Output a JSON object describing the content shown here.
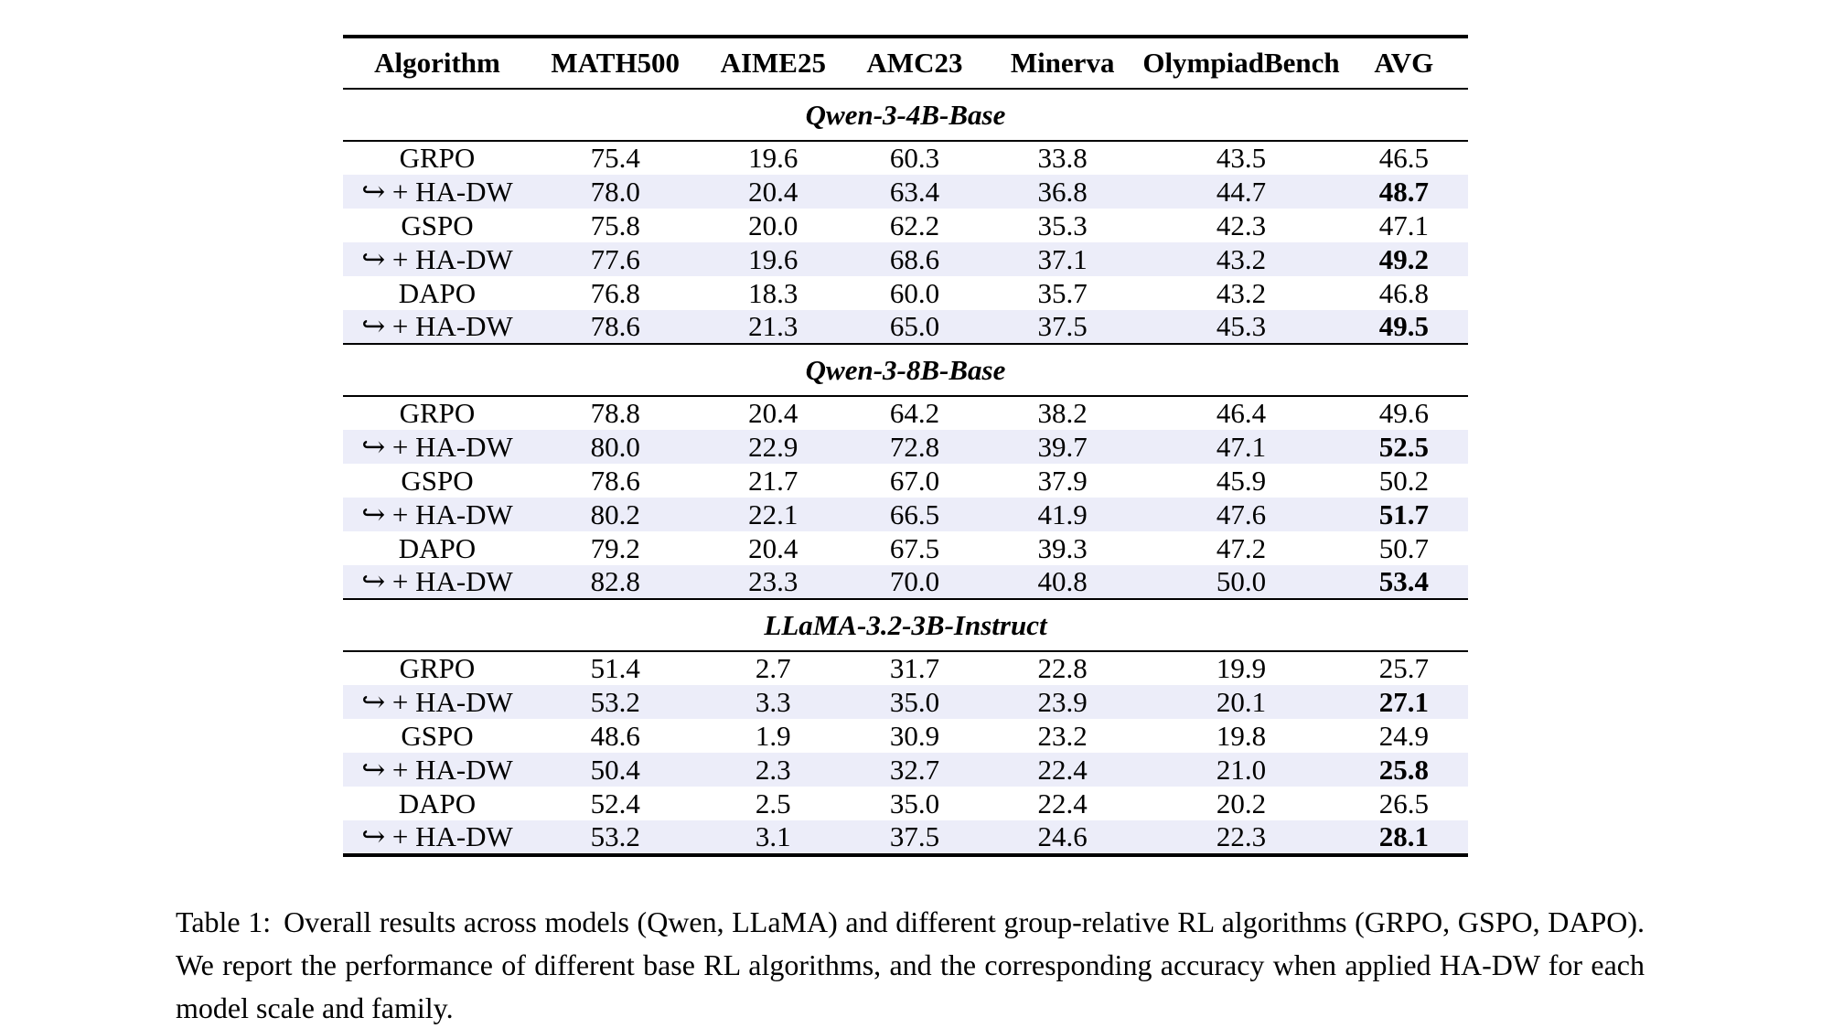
{
  "colors": {
    "highlight_row": "#ecedf9",
    "text": "#000000",
    "rule": "#000000"
  },
  "table": {
    "columns": [
      "Algorithm",
      "MATH500",
      "AIME25",
      "AMC23",
      "Minerva",
      "OlympiadBench",
      "AVG"
    ],
    "sections": [
      {
        "title": "Qwen-3-4B-Base",
        "rows": [
          {
            "algorithm": "GRPO",
            "values": [
              "75.4",
              "19.6",
              "60.3",
              "33.8",
              "43.5",
              "46.5"
            ],
            "highlight": false,
            "bold_avg": false
          },
          {
            "algorithm": "↪ + HA-DW",
            "values": [
              "78.0",
              "20.4",
              "63.4",
              "36.8",
              "44.7",
              "48.7"
            ],
            "highlight": true,
            "bold_avg": true
          },
          {
            "algorithm": "GSPO",
            "values": [
              "75.8",
              "20.0",
              "62.2",
              "35.3",
              "42.3",
              "47.1"
            ],
            "highlight": false,
            "bold_avg": false
          },
          {
            "algorithm": "↪ + HA-DW",
            "values": [
              "77.6",
              "19.6",
              "68.6",
              "37.1",
              "43.2",
              "49.2"
            ],
            "highlight": true,
            "bold_avg": true
          },
          {
            "algorithm": "DAPO",
            "values": [
              "76.8",
              "18.3",
              "60.0",
              "35.7",
              "43.2",
              "46.8"
            ],
            "highlight": false,
            "bold_avg": false
          },
          {
            "algorithm": "↪ + HA-DW",
            "values": [
              "78.6",
              "21.3",
              "65.0",
              "37.5",
              "45.3",
              "49.5"
            ],
            "highlight": true,
            "bold_avg": true
          }
        ]
      },
      {
        "title": "Qwen-3-8B-Base",
        "rows": [
          {
            "algorithm": "GRPO",
            "values": [
              "78.8",
              "20.4",
              "64.2",
              "38.2",
              "46.4",
              "49.6"
            ],
            "highlight": false,
            "bold_avg": false
          },
          {
            "algorithm": "↪ + HA-DW",
            "values": [
              "80.0",
              "22.9",
              "72.8",
              "39.7",
              "47.1",
              "52.5"
            ],
            "highlight": true,
            "bold_avg": true
          },
          {
            "algorithm": "GSPO",
            "values": [
              "78.6",
              "21.7",
              "67.0",
              "37.9",
              "45.9",
              "50.2"
            ],
            "highlight": false,
            "bold_avg": false
          },
          {
            "algorithm": "↪ + HA-DW",
            "values": [
              "80.2",
              "22.1",
              "66.5",
              "41.9",
              "47.6",
              "51.7"
            ],
            "highlight": true,
            "bold_avg": true
          },
          {
            "algorithm": "DAPO",
            "values": [
              "79.2",
              "20.4",
              "67.5",
              "39.3",
              "47.2",
              "50.7"
            ],
            "highlight": false,
            "bold_avg": false
          },
          {
            "algorithm": "↪ + HA-DW",
            "values": [
              "82.8",
              "23.3",
              "70.0",
              "40.8",
              "50.0",
              "53.4"
            ],
            "highlight": true,
            "bold_avg": true
          }
        ]
      },
      {
        "title": "LLaMA-3.2-3B-Instruct",
        "rows": [
          {
            "algorithm": "GRPO",
            "values": [
              "51.4",
              "2.7",
              "31.7",
              "22.8",
              "19.9",
              "25.7"
            ],
            "highlight": false,
            "bold_avg": false
          },
          {
            "algorithm": "↪ + HA-DW",
            "values": [
              "53.2",
              "3.3",
              "35.0",
              "23.9",
              "20.1",
              "27.1"
            ],
            "highlight": true,
            "bold_avg": true
          },
          {
            "algorithm": "GSPO",
            "values": [
              "48.6",
              "1.9",
              "30.9",
              "23.2",
              "19.8",
              "24.9"
            ],
            "highlight": false,
            "bold_avg": false
          },
          {
            "algorithm": "↪ + HA-DW",
            "values": [
              "50.4",
              "2.3",
              "32.7",
              "22.4",
              "21.0",
              "25.8"
            ],
            "highlight": true,
            "bold_avg": true
          },
          {
            "algorithm": "DAPO",
            "values": [
              "52.4",
              "2.5",
              "35.0",
              "22.4",
              "20.2",
              "26.5"
            ],
            "highlight": false,
            "bold_avg": false
          },
          {
            "algorithm": "↪ + HA-DW",
            "values": [
              "53.2",
              "3.1",
              "37.5",
              "24.6",
              "22.3",
              "28.1"
            ],
            "highlight": true,
            "bold_avg": true
          }
        ]
      }
    ]
  },
  "caption": {
    "label": "Table 1:",
    "text": "Overall results across models (Qwen, LLaMA) and different group-relative RL algorithms (GRPO, GSPO, DAPO). We report the performance of different base RL algorithms, and the corresponding accuracy when applied HA-DW for each model scale and family."
  }
}
